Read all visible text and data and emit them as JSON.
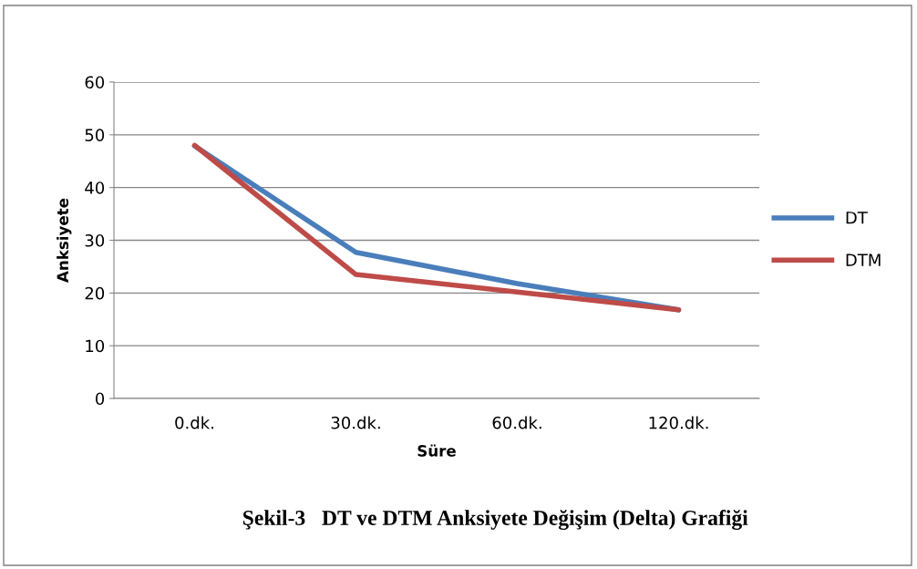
{
  "chart_data": {
    "type": "line",
    "title": "Şekil-3   DT ve DTM Anksiyete Değişim (Delta) Grafiği",
    "xlabel": "Süre",
    "ylabel": "Anksiyete",
    "categories": [
      "0.dk.",
      "30.dk.",
      "60.dk.",
      "120.dk."
    ],
    "series": [
      {
        "name": "DT",
        "color": "#4a7ebb",
        "values": [
          47.9,
          27.7,
          21.8,
          16.8
        ]
      },
      {
        "name": "DTM",
        "color": "#be4b48",
        "values": [
          48.0,
          23.5,
          20.2,
          16.8
        ]
      }
    ],
    "ylim": [
      0,
      60
    ],
    "yticks": [
      0,
      10,
      20,
      30,
      40,
      50,
      60
    ],
    "grid": "y",
    "legend": "right",
    "marker": "none",
    "line_style": "solid"
  }
}
